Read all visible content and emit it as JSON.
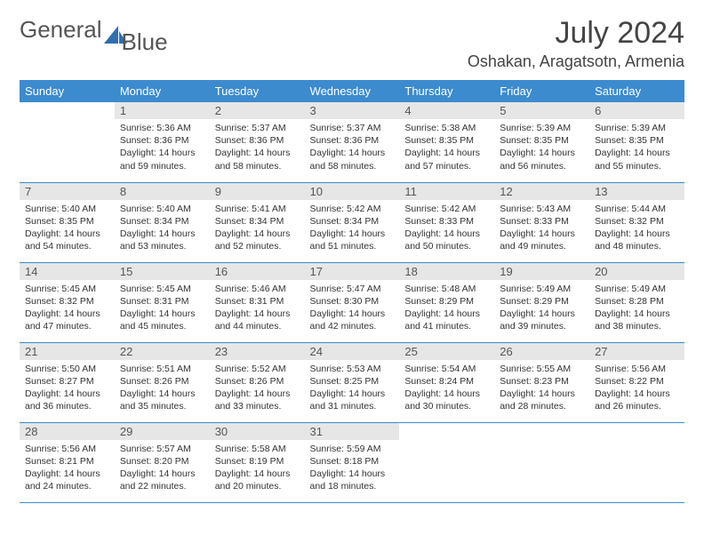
{
  "brand": {
    "word1": "General",
    "word2": "Blue",
    "accent_color": "#2f6fb0"
  },
  "title": "July 2024",
  "location": "Oshakan, Aragatsotn, Armenia",
  "day_headers": [
    "Sunday",
    "Monday",
    "Tuesday",
    "Wednesday",
    "Thursday",
    "Friday",
    "Saturday"
  ],
  "header_bg": "#3b8bce",
  "daynum_bg": "#e6e6e6",
  "weeks": [
    [
      {
        "n": "",
        "sr": "",
        "ss": "",
        "dl": ""
      },
      {
        "n": "1",
        "sr": "5:36 AM",
        "ss": "8:36 PM",
        "dl": "14 hours and 59 minutes."
      },
      {
        "n": "2",
        "sr": "5:37 AM",
        "ss": "8:36 PM",
        "dl": "14 hours and 58 minutes."
      },
      {
        "n": "3",
        "sr": "5:37 AM",
        "ss": "8:36 PM",
        "dl": "14 hours and 58 minutes."
      },
      {
        "n": "4",
        "sr": "5:38 AM",
        "ss": "8:35 PM",
        "dl": "14 hours and 57 minutes."
      },
      {
        "n": "5",
        "sr": "5:39 AM",
        "ss": "8:35 PM",
        "dl": "14 hours and 56 minutes."
      },
      {
        "n": "6",
        "sr": "5:39 AM",
        "ss": "8:35 PM",
        "dl": "14 hours and 55 minutes."
      }
    ],
    [
      {
        "n": "7",
        "sr": "5:40 AM",
        "ss": "8:35 PM",
        "dl": "14 hours and 54 minutes."
      },
      {
        "n": "8",
        "sr": "5:40 AM",
        "ss": "8:34 PM",
        "dl": "14 hours and 53 minutes."
      },
      {
        "n": "9",
        "sr": "5:41 AM",
        "ss": "8:34 PM",
        "dl": "14 hours and 52 minutes."
      },
      {
        "n": "10",
        "sr": "5:42 AM",
        "ss": "8:34 PM",
        "dl": "14 hours and 51 minutes."
      },
      {
        "n": "11",
        "sr": "5:42 AM",
        "ss": "8:33 PM",
        "dl": "14 hours and 50 minutes."
      },
      {
        "n": "12",
        "sr": "5:43 AM",
        "ss": "8:33 PM",
        "dl": "14 hours and 49 minutes."
      },
      {
        "n": "13",
        "sr": "5:44 AM",
        "ss": "8:32 PM",
        "dl": "14 hours and 48 minutes."
      }
    ],
    [
      {
        "n": "14",
        "sr": "5:45 AM",
        "ss": "8:32 PM",
        "dl": "14 hours and 47 minutes."
      },
      {
        "n": "15",
        "sr": "5:45 AM",
        "ss": "8:31 PM",
        "dl": "14 hours and 45 minutes."
      },
      {
        "n": "16",
        "sr": "5:46 AM",
        "ss": "8:31 PM",
        "dl": "14 hours and 44 minutes."
      },
      {
        "n": "17",
        "sr": "5:47 AM",
        "ss": "8:30 PM",
        "dl": "14 hours and 42 minutes."
      },
      {
        "n": "18",
        "sr": "5:48 AM",
        "ss": "8:29 PM",
        "dl": "14 hours and 41 minutes."
      },
      {
        "n": "19",
        "sr": "5:49 AM",
        "ss": "8:29 PM",
        "dl": "14 hours and 39 minutes."
      },
      {
        "n": "20",
        "sr": "5:49 AM",
        "ss": "8:28 PM",
        "dl": "14 hours and 38 minutes."
      }
    ],
    [
      {
        "n": "21",
        "sr": "5:50 AM",
        "ss": "8:27 PM",
        "dl": "14 hours and 36 minutes."
      },
      {
        "n": "22",
        "sr": "5:51 AM",
        "ss": "8:26 PM",
        "dl": "14 hours and 35 minutes."
      },
      {
        "n": "23",
        "sr": "5:52 AM",
        "ss": "8:26 PM",
        "dl": "14 hours and 33 minutes."
      },
      {
        "n": "24",
        "sr": "5:53 AM",
        "ss": "8:25 PM",
        "dl": "14 hours and 31 minutes."
      },
      {
        "n": "25",
        "sr": "5:54 AM",
        "ss": "8:24 PM",
        "dl": "14 hours and 30 minutes."
      },
      {
        "n": "26",
        "sr": "5:55 AM",
        "ss": "8:23 PM",
        "dl": "14 hours and 28 minutes."
      },
      {
        "n": "27",
        "sr": "5:56 AM",
        "ss": "8:22 PM",
        "dl": "14 hours and 26 minutes."
      }
    ],
    [
      {
        "n": "28",
        "sr": "5:56 AM",
        "ss": "8:21 PM",
        "dl": "14 hours and 24 minutes."
      },
      {
        "n": "29",
        "sr": "5:57 AM",
        "ss": "8:20 PM",
        "dl": "14 hours and 22 minutes."
      },
      {
        "n": "30",
        "sr": "5:58 AM",
        "ss": "8:19 PM",
        "dl": "14 hours and 20 minutes."
      },
      {
        "n": "31",
        "sr": "5:59 AM",
        "ss": "8:18 PM",
        "dl": "14 hours and 18 minutes."
      },
      {
        "n": "",
        "sr": "",
        "ss": "",
        "dl": ""
      },
      {
        "n": "",
        "sr": "",
        "ss": "",
        "dl": ""
      },
      {
        "n": "",
        "sr": "",
        "ss": "",
        "dl": ""
      }
    ]
  ],
  "labels": {
    "sunrise": "Sunrise:",
    "sunset": "Sunset:",
    "daylight": "Daylight:"
  }
}
